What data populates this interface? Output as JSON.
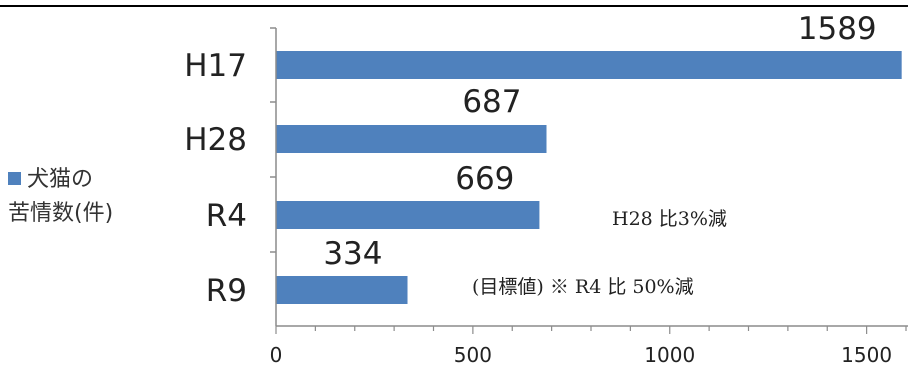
{
  "chart_data": {
    "type": "bar",
    "orientation": "horizontal",
    "categories": [
      "H17",
      "H28",
      "R4",
      "R9"
    ],
    "series": [
      {
        "name": "犬猫の苦情数(件)",
        "values": [
          1589,
          687,
          669,
          334
        ]
      }
    ],
    "data_labels": [
      "1589",
      "687",
      "669",
      "334"
    ],
    "xlim": [
      0,
      1600
    ],
    "x_ticks": [
      0,
      500,
      1000,
      1500
    ],
    "x_tick_labels": [
      "0",
      "500",
      "1000",
      "1500"
    ],
    "grid": false,
    "legend_position": "left",
    "bar_color": "#4f81bd",
    "annotations": [
      {
        "text": "H28 比3%減",
        "category": "R4"
      },
      {
        "text": "(目標値) ※ R4 比 50%減",
        "category": "R9"
      }
    ]
  },
  "legend": {
    "line1": "犬猫の",
    "line2": "苦情数(件)"
  }
}
